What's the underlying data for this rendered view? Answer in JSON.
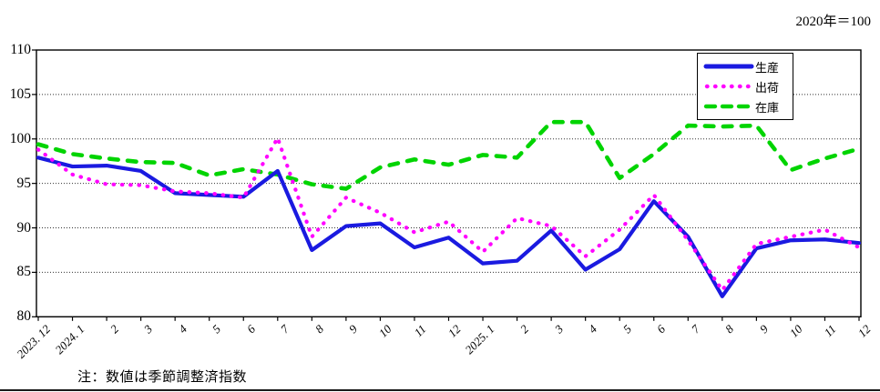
{
  "scale_note": "2020年＝100",
  "footnote": "注：数値は季節調整済指数",
  "chart_data": {
    "type": "line",
    "title": "",
    "x_labels": [
      "2023. 12",
      "2024. 1",
      "2",
      "3",
      "4",
      "5",
      "6",
      "7",
      "8",
      "9",
      "10",
      "11",
      "12",
      "2025. 1",
      "2",
      "3",
      "4",
      "5",
      "6",
      "7",
      "8",
      "9",
      "10",
      "11",
      "12"
    ],
    "y_ticks": [
      110,
      105,
      100,
      95,
      90,
      85,
      80
    ],
    "ylim": [
      80,
      110
    ],
    "grid": "horizontal-dotted",
    "legend_position": "inside-top-right",
    "series": [
      {
        "name": "生産",
        "color": "#1a1ae0",
        "line_style": "solid",
        "values": [
          97.9,
          96.9,
          97.0,
          96.4,
          93.9,
          93.7,
          93.5,
          96.4,
          87.5,
          90.2,
          90.5,
          87.8,
          88.9,
          86.0,
          86.3,
          89.7,
          85.3,
          87.6,
          93.0,
          89.0,
          82.3,
          87.7,
          88.6,
          88.7,
          88.3
        ]
      },
      {
        "name": "出荷",
        "color": "#ff00ff",
        "line_style": "dotted",
        "values": [
          98.8,
          96.0,
          94.9,
          94.8,
          94.1,
          93.9,
          93.4,
          100.1,
          89.0,
          93.4,
          91.7,
          89.5,
          90.7,
          87.3,
          91.1,
          90.2,
          86.8,
          89.8,
          93.7,
          88.6,
          83.0,
          88.2,
          89.0,
          89.8,
          87.8
        ]
      },
      {
        "name": "在庫",
        "color": "#00d400",
        "line_style": "dashed",
        "values": [
          99.4,
          98.3,
          97.8,
          97.4,
          97.3,
          95.9,
          96.6,
          96.0,
          94.9,
          94.4,
          96.8,
          97.7,
          97.1,
          98.2,
          97.9,
          101.9,
          101.9,
          95.6,
          98.3,
          101.5,
          101.4,
          101.5,
          96.5,
          97.8,
          98.9
        ]
      }
    ]
  }
}
